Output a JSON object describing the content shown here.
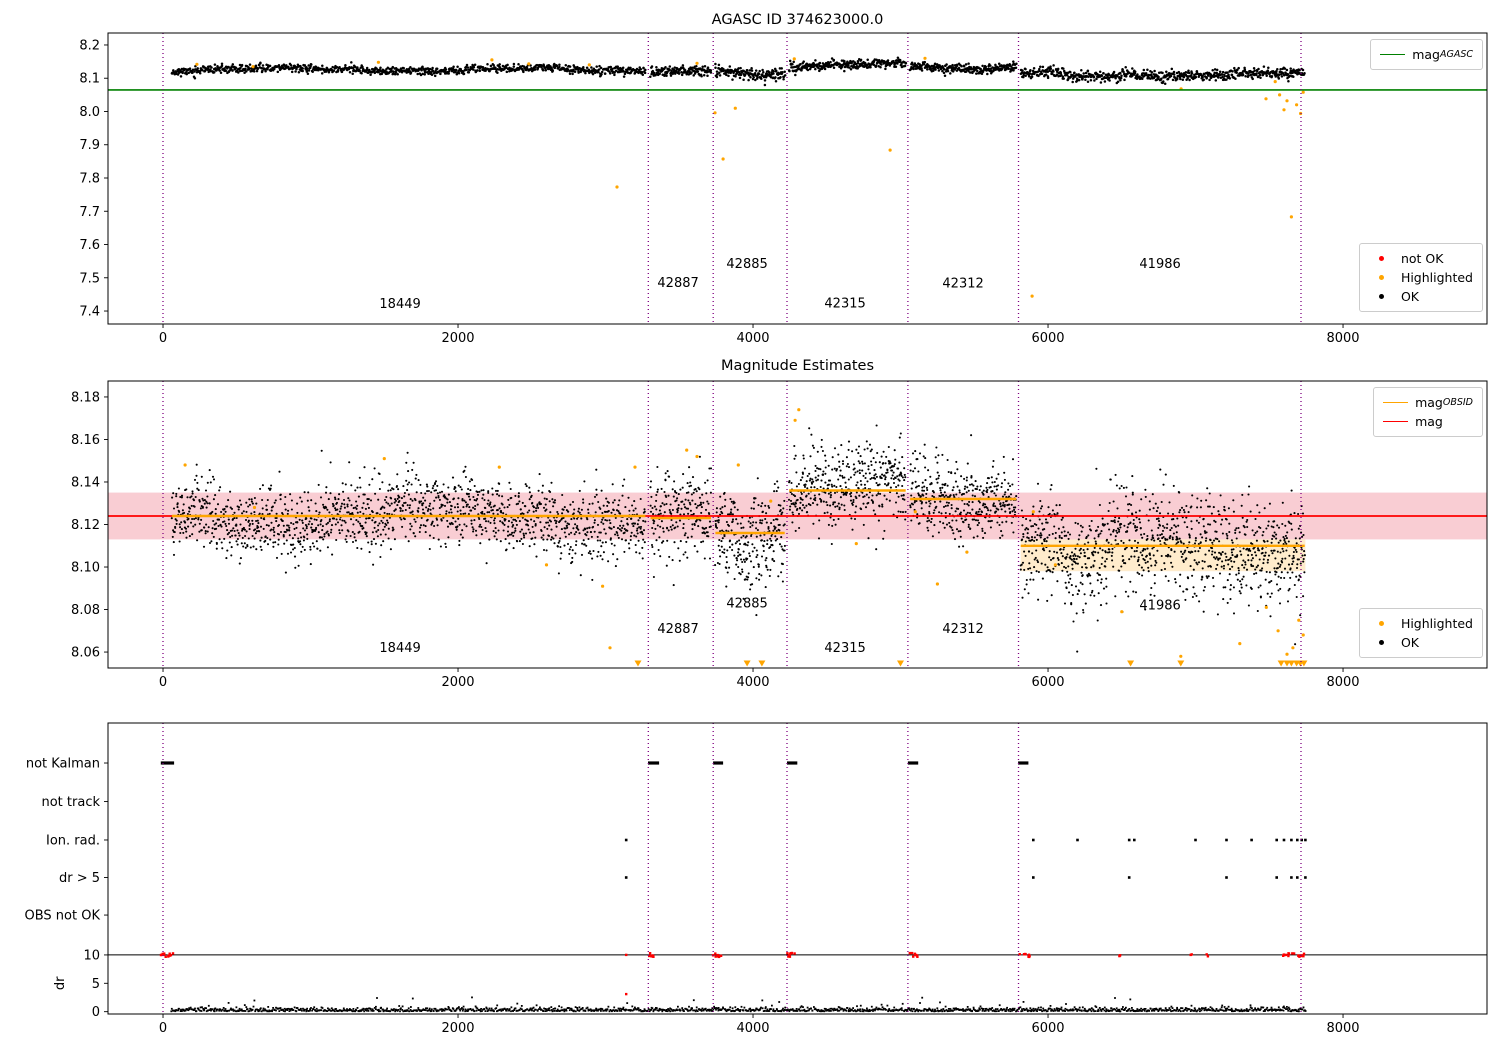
{
  "colors": {
    "black": "#000000",
    "ok": "#000000",
    "orange": "#ffa500",
    "highlighted": "#ffa500",
    "red": "#ff0000",
    "not_ok": "#ff0000",
    "green": "#008000",
    "divider": "#800080",
    "pink_band": "#f9cdd3",
    "orange_band": "#ffeccc",
    "spine": "#000000"
  },
  "legends": [
    {
      "id": "mag-agasc",
      "items": [
        {
          "type": "line",
          "color": "green",
          "label": "mag",
          "sub": "AGASC"
        }
      ]
    },
    {
      "id": "mags-points",
      "items": [
        {
          "type": "dot",
          "color": "red",
          "label": "not OK"
        },
        {
          "type": "dot",
          "color": "orange",
          "label": "Highlighted"
        },
        {
          "type": "dot",
          "color": "black",
          "label": "OK"
        }
      ]
    },
    {
      "id": "estimates-lines",
      "items": [
        {
          "type": "line",
          "color": "orange",
          "label": "mag",
          "sub": "OBSID"
        },
        {
          "type": "line",
          "color": "red",
          "label": "mag"
        }
      ]
    },
    {
      "id": "estimates-points",
      "items": [
        {
          "type": "dot",
          "color": "orange",
          "label": "Highlighted"
        },
        {
          "type": "dot",
          "color": "black",
          "label": "OK"
        }
      ]
    }
  ],
  "chart_data": [
    {
      "type": "scatter",
      "title": "AGASC ID 374623000.0",
      "xlim": [
        -373,
        8976
      ],
      "ylim": [
        7.361,
        8.236
      ],
      "wiggle": 0.005,
      "wiggle_period": 260,
      "wiggle2": 0.002,
      "xticks": [
        {
          "v": 0,
          "label": "0"
        },
        {
          "v": 2000,
          "label": "2000"
        },
        {
          "v": 4000,
          "label": "4000"
        },
        {
          "v": 6000,
          "label": "6000"
        },
        {
          "v": 8000,
          "label": "8000"
        }
      ],
      "yticks": [
        {
          "v": 8.2,
          "label": "8.2"
        },
        {
          "v": 8.1,
          "label": "8.1"
        },
        {
          "v": 8.0,
          "label": "8.0"
        },
        {
          "v": 7.9,
          "label": "7.9"
        },
        {
          "v": 7.8,
          "label": "7.8"
        },
        {
          "v": 7.7,
          "label": "7.7"
        },
        {
          "v": 7.6,
          "label": "7.6"
        },
        {
          "v": 7.5,
          "label": "7.5"
        },
        {
          "v": 7.4,
          "label": "7.4"
        }
      ],
      "dividers": [
        0,
        3290,
        3730,
        4230,
        5050,
        5800,
        7715
      ],
      "hlines": [
        {
          "y": 8.065,
          "color": "green",
          "w": 1.6
        }
      ],
      "mag_agasc": 8.065,
      "segments": [
        {
          "obsid": "18449",
          "x0": 60,
          "x1": 3270,
          "n": 950,
          "mean": 8.126,
          "std": 0.006,
          "seed": 11
        },
        {
          "obsid": "42887",
          "x0": 3305,
          "x1": 3715,
          "n": 140,
          "mean": 8.12,
          "std": 0.007,
          "seed": 12
        },
        {
          "obsid": "42885",
          "x0": 3745,
          "x1": 4215,
          "n": 170,
          "mean": 8.114,
          "std": 0.009,
          "seed": 13
        },
        {
          "obsid": "42315",
          "x0": 4245,
          "x1": 5035,
          "n": 270,
          "mean": 8.139,
          "std": 0.007,
          "seed": 14
        },
        {
          "obsid": "42312",
          "x0": 5065,
          "x1": 5785,
          "n": 250,
          "mean": 8.134,
          "std": 0.007,
          "seed": 15
        },
        {
          "obsid": "41986",
          "x0": 5815,
          "x1": 7740,
          "n": 640,
          "mean": 8.112,
          "std": 0.008,
          "seed": 16,
          "dips": [
            {
              "x0": 6100,
              "x1": 6500,
              "dy": -0.008
            }
          ]
        }
      ],
      "highlighted": [
        {
          "x": 230,
          "y": 8.142
        },
        {
          "x": 610,
          "y": 8.135
        },
        {
          "x": 1460,
          "y": 8.148
        },
        {
          "x": 2230,
          "y": 8.155
        },
        {
          "x": 2480,
          "y": 8.143
        },
        {
          "x": 2890,
          "y": 8.14
        },
        {
          "x": 3078,
          "y": 7.773
        },
        {
          "x": 3620,
          "y": 8.145
        },
        {
          "x": 3742,
          "y": 7.996
        },
        {
          "x": 3797,
          "y": 7.857
        },
        {
          "x": 3880,
          "y": 8.01
        },
        {
          "x": 4280,
          "y": 8.158
        },
        {
          "x": 4929,
          "y": 7.884
        },
        {
          "x": 5166,
          "y": 8.16
        },
        {
          "x": 5892,
          "y": 7.445
        },
        {
          "x": 6902,
          "y": 8.068
        },
        {
          "x": 7478,
          "y": 8.038
        },
        {
          "x": 7540,
          "y": 8.09
        },
        {
          "x": 7570,
          "y": 8.05
        },
        {
          "x": 7600,
          "y": 8.005
        },
        {
          "x": 7620,
          "y": 8.032
        },
        {
          "x": 7650,
          "y": 7.683
        },
        {
          "x": 7685,
          "y": 8.02
        },
        {
          "x": 7712,
          "y": 7.994
        },
        {
          "x": 7730,
          "y": 8.058
        }
      ],
      "obsid_labels": [
        {
          "text": "18449",
          "x": 1607,
          "y": 7.409
        },
        {
          "text": "42887",
          "x": 3492,
          "y": 7.472
        },
        {
          "text": "42885",
          "x": 3960,
          "y": 7.53
        },
        {
          "text": "42315",
          "x": 4624,
          "y": 7.41
        },
        {
          "text": "42312",
          "x": 5424,
          "y": 7.47
        },
        {
          "text": "41986",
          "x": 6760,
          "y": 7.53
        }
      ]
    },
    {
      "type": "scatter",
      "title": "Magnitude Estimates",
      "xlim": [
        -373,
        8976
      ],
      "ylim": [
        8.0525,
        8.1875
      ],
      "wiggle": 0.004,
      "wiggle_period": 330,
      "wiggle2": 0.002,
      "xticks": [
        {
          "v": 0,
          "label": "0"
        },
        {
          "v": 2000,
          "label": "2000"
        },
        {
          "v": 4000,
          "label": "4000"
        },
        {
          "v": 6000,
          "label": "6000"
        },
        {
          "v": 8000,
          "label": "8000"
        }
      ],
      "yticks": [
        {
          "v": 8.18,
          "label": "8.18"
        },
        {
          "v": 8.16,
          "label": "8.16"
        },
        {
          "v": 8.14,
          "label": "8.14"
        },
        {
          "v": 8.12,
          "label": "8.12"
        },
        {
          "v": 8.1,
          "label": "8.10"
        },
        {
          "v": 8.08,
          "label": "8.08"
        },
        {
          "v": 8.06,
          "label": "8.06"
        }
      ],
      "dividers": [
        0,
        3290,
        3730,
        4230,
        5050,
        5800,
        7715
      ],
      "bands": [
        {
          "x0": 5815,
          "x1": 7745,
          "y0": 8.098,
          "y1": 8.122,
          "color": "orange_band"
        },
        {
          "x0": -373,
          "x1": 8976,
          "y0": 8.113,
          "y1": 8.135,
          "color": "pink_band"
        }
      ],
      "hlines": [
        {
          "y": 8.124,
          "color": "red",
          "w": 1.8
        }
      ],
      "mag": 8.124,
      "obsid_lines": [
        {
          "obsid": "18449",
          "x0": 60,
          "x1": 3270,
          "y": 8.124
        },
        {
          "obsid": "42887",
          "x0": 3305,
          "x1": 3715,
          "y": 8.123
        },
        {
          "obsid": "42885",
          "x0": 3745,
          "x1": 4215,
          "y": 8.116
        },
        {
          "obsid": "42315",
          "x0": 4245,
          "x1": 5035,
          "y": 8.136
        },
        {
          "obsid": "42312",
          "x0": 5065,
          "x1": 5785,
          "y": 8.132
        },
        {
          "obsid": "41986",
          "x0": 5815,
          "x1": 7740,
          "y": 8.11
        }
      ],
      "segments": [
        {
          "obsid": "18449",
          "x0": 60,
          "x1": 3270,
          "n": 1500,
          "mean": 8.124,
          "std": 0.008,
          "seed": 21
        },
        {
          "obsid": "42887",
          "x0": 3305,
          "x1": 3715,
          "n": 210,
          "mean": 8.122,
          "std": 0.01,
          "seed": 22
        },
        {
          "obsid": "42885",
          "x0": 3745,
          "x1": 4215,
          "n": 270,
          "mean": 8.117,
          "std": 0.011,
          "seed": 23,
          "dips": [
            {
              "x0": 3900,
              "x1": 4150,
              "dy": -0.006
            }
          ]
        },
        {
          "obsid": "42315",
          "x0": 4245,
          "x1": 5035,
          "n": 430,
          "mean": 8.1365,
          "std": 0.009,
          "seed": 24
        },
        {
          "obsid": "42312",
          "x0": 5065,
          "x1": 5785,
          "n": 390,
          "mean": 8.132,
          "std": 0.009,
          "seed": 25
        },
        {
          "obsid": "41986",
          "x0": 5815,
          "x1": 7740,
          "n": 1050,
          "mean": 8.11,
          "std": 0.012,
          "seed": 26,
          "dips": [
            {
              "x0": 6100,
              "x1": 6400,
              "dy": -0.009
            }
          ]
        }
      ],
      "highlighted": [
        {
          "x": 150,
          "y": 8.148
        },
        {
          "x": 620,
          "y": 8.128
        },
        {
          "x": 1500,
          "y": 8.151
        },
        {
          "x": 2280,
          "y": 8.147
        },
        {
          "x": 2600,
          "y": 8.101
        },
        {
          "x": 2980,
          "y": 8.091
        },
        {
          "x": 3030,
          "y": 8.062
        },
        {
          "x": 3200,
          "y": 8.147
        },
        {
          "x": 3550,
          "y": 8.155
        },
        {
          "x": 3620,
          "y": 8.152
        },
        {
          "x": 3900,
          "y": 8.148
        },
        {
          "x": 4120,
          "y": 8.131
        },
        {
          "x": 4285,
          "y": 8.169
        },
        {
          "x": 4310,
          "y": 8.174
        },
        {
          "x": 4700,
          "y": 8.111
        },
        {
          "x": 5100,
          "y": 8.126
        },
        {
          "x": 5250,
          "y": 8.092
        },
        {
          "x": 5450,
          "y": 8.107
        },
        {
          "x": 5900,
          "y": 8.126
        },
        {
          "x": 6050,
          "y": 8.101
        },
        {
          "x": 6500,
          "y": 8.079
        },
        {
          "x": 6900,
          "y": 8.058
        },
        {
          "x": 7300,
          "y": 8.064
        },
        {
          "x": 7480,
          "y": 8.081
        },
        {
          "x": 7560,
          "y": 8.07
        },
        {
          "x": 7620,
          "y": 8.059
        },
        {
          "x": 7660,
          "y": 8.062
        },
        {
          "x": 7700,
          "y": 8.075
        },
        {
          "x": 7730,
          "y": 8.068
        }
      ],
      "clipped_low": [
        3220,
        3960,
        4060,
        5000,
        6560,
        6900,
        7580,
        7620,
        7650,
        7685,
        7710,
        7735
      ],
      "obsid_labels": [
        {
          "text": "18449",
          "x": 1607,
          "y": 8.06
        },
        {
          "text": "42887",
          "x": 3492,
          "y": 8.069
        },
        {
          "text": "42885",
          "x": 3960,
          "y": 8.081
        },
        {
          "text": "42315",
          "x": 4624,
          "y": 8.06
        },
        {
          "text": "42312",
          "x": 5424,
          "y": 8.069
        },
        {
          "text": "41986",
          "x": 6760,
          "y": 8.08
        }
      ]
    },
    {
      "type": "flags",
      "title": "",
      "xlim": [
        -373,
        8976
      ],
      "xticks": [
        {
          "v": 0,
          "label": "0"
        },
        {
          "v": 2000,
          "label": "2000"
        },
        {
          "v": 4000,
          "label": "4000"
        },
        {
          "v": 6000,
          "label": "6000"
        },
        {
          "v": 8000,
          "label": "8000"
        }
      ],
      "dividers": [
        0,
        3290,
        3730,
        4230,
        5050,
        5800,
        7715
      ],
      "categories": [
        "not Kalman",
        "not track",
        "Ion. rad.",
        "dr > 5",
        "OBS not OK"
      ],
      "dr_axis": {
        "label": "dr",
        "ticks": [
          {
            "v": 10,
            "label": "10"
          },
          {
            "v": 5,
            "label": "5"
          },
          {
            "v": 0,
            "label": "0"
          }
        ],
        "hline": 10
      },
      "not_kalman_runs": [
        [
          -15,
          75
        ],
        [
          3288,
          3363
        ],
        [
          3729,
          3797
        ],
        [
          4230,
          4300
        ],
        [
          5050,
          5120
        ],
        [
          5797,
          5867
        ]
      ],
      "ion_rad_x": [
        3140,
        5900,
        6200,
        6550,
        6585,
        7000,
        7210,
        7380,
        7550,
        7600,
        7650,
        7690,
        7720,
        7745
      ],
      "dr_gt5_x": [
        3140,
        5900,
        6550,
        7210,
        7550,
        7650,
        7690,
        7745
      ],
      "dr10_red_clusters": [
        [
          -15,
          80,
          14
        ],
        [
          3288,
          3350,
          7
        ],
        [
          3700,
          3790,
          9
        ],
        [
          4230,
          4300,
          8
        ],
        [
          5050,
          5115,
          8
        ],
        [
          5797,
          5880,
          9
        ],
        [
          6480,
          6515,
          3
        ],
        [
          6950,
          6975,
          2
        ],
        [
          7065,
          7090,
          2
        ],
        [
          7550,
          7745,
          16
        ]
      ],
      "dr_red_singles": [
        {
          "x": 3140,
          "dr": 10
        },
        {
          "x": 3140,
          "dr": 3.1
        }
      ],
      "dr_scatter": {
        "x0": 55,
        "x1": 7745,
        "n": 1500,
        "seed": 31
      }
    }
  ]
}
